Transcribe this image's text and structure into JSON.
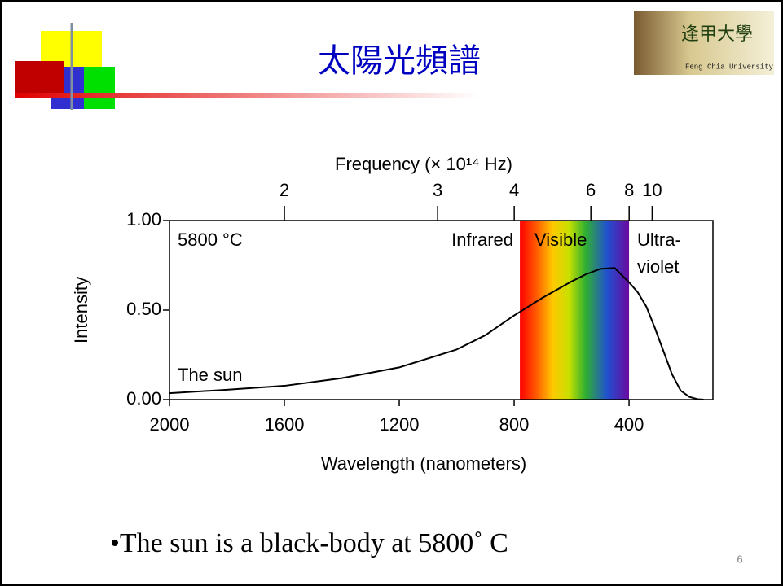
{
  "slide": {
    "title": "太陽光頻譜",
    "bullet": "•The sun is a black-body at 5800˚ C",
    "page_number": "6",
    "logo_text": "逢甲大學",
    "logo_subtext": "Feng Chia University"
  },
  "chart_data": {
    "type": "line",
    "x2label": "Frequency (× 10¹⁴ Hz)",
    "xlabel": "Wavelength (nanometers)",
    "ylabel": "Intensity",
    "annotations": [
      "5800 °C",
      "Infrared",
      "Visible",
      "Ultra-",
      "violet",
      "The sun"
    ],
    "x": [
      2000,
      1800,
      1600,
      1400,
      1200,
      1000,
      900,
      800,
      700,
      600,
      550,
      500,
      450,
      400,
      370,
      340,
      310,
      280,
      250,
      220,
      190,
      160,
      140
    ],
    "values": [
      0.036,
      0.055,
      0.077,
      0.12,
      0.18,
      0.28,
      0.36,
      0.47,
      0.57,
      0.66,
      0.7,
      0.73,
      0.735,
      0.655,
      0.6,
      0.52,
      0.4,
      0.27,
      0.14,
      0.05,
      0.015,
      0.002,
      0
    ],
    "color": "#000000",
    "visible_band": [
      780,
      400
    ],
    "xlim": [
      2000,
      108
    ],
    "xticks": [
      2000,
      1600,
      1200,
      800,
      400
    ],
    "x2lim": [
      1.6,
      29.5
    ],
    "x2ticks": [
      2,
      3,
      4,
      6,
      8,
      10
    ],
    "ylim": [
      0,
      1
    ],
    "yticks": [
      {
        "value": 0,
        "label": "0.00"
      },
      {
        "value": 0.5,
        "label": "0.50"
      },
      {
        "value": 1,
        "label": "1.00"
      }
    ]
  }
}
